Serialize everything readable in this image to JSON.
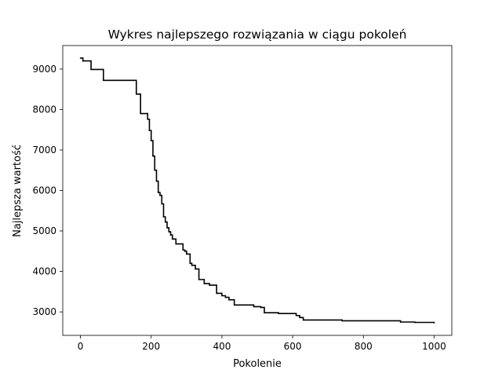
{
  "chart_data": {
    "type": "line",
    "title": "Wykres najlepszego rozwiązania w ciągu pokoleń",
    "xlabel": "Pokolenie",
    "ylabel": "Najlepsza wartość",
    "xlim": [
      -50,
      1050
    ],
    "ylim": [
      2420,
      9580
    ],
    "xticks": [
      0,
      200,
      400,
      600,
      800,
      1000
    ],
    "yticks": [
      3000,
      4000,
      5000,
      6000,
      7000,
      8000,
      9000
    ],
    "grid": false,
    "legend": "none",
    "step": "post",
    "series": [
      {
        "color": "#000000",
        "x": [
          0,
          7,
          30,
          65,
          158,
          170,
          190,
          195,
          200,
          205,
          210,
          215,
          220,
          225,
          230,
          235,
          240,
          245,
          250,
          255,
          260,
          270,
          290,
          295,
          300,
          310,
          315,
          325,
          335,
          350,
          365,
          385,
          400,
          410,
          420,
          435,
          490,
          510,
          520,
          560,
          610,
          620,
          630,
          740,
          905,
          945,
          1000
        ],
        "y": [
          9270,
          9200,
          8990,
          8720,
          8380,
          7900,
          7760,
          7480,
          7230,
          6850,
          6500,
          6230,
          5950,
          5880,
          5670,
          5350,
          5220,
          5080,
          4980,
          4900,
          4800,
          4680,
          4530,
          4500,
          4430,
          4200,
          4150,
          4060,
          3800,
          3700,
          3660,
          3460,
          3400,
          3360,
          3300,
          3170,
          3130,
          3110,
          2980,
          2960,
          2910,
          2860,
          2800,
          2780,
          2750,
          2740,
          2730
        ]
      }
    ]
  }
}
